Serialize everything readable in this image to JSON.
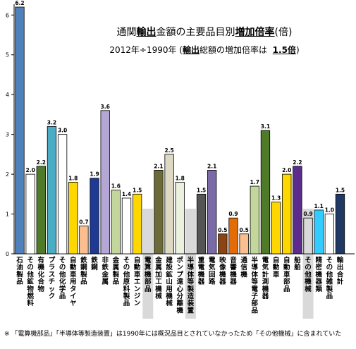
{
  "titles": {
    "line1_pre": "通関",
    "line1_em1": "輸出",
    "line1_mid": "金額の主要品目別",
    "line1_em2": "増加倍率",
    "line1_post": "(倍)",
    "line2_pre": "2012年÷1990年 (",
    "line2_em1": "輸出",
    "line2_mid": "総額の増加倍率は",
    "line2_em2": "1.5倍",
    "line2_post": ")"
  },
  "footnote": "※ 「電算機部品」「半導体等製造装置」は1990年には概況品目とされていなかったため「その他機械」に含まれていた",
  "chart_data": {
    "type": "bar",
    "title": "通関輸出金額の主要品目別増加倍率(倍)",
    "subtitle": "2012年÷1990年 (輸出総額の増加倍率は 1.5倍)",
    "ylim": [
      0,
      6.2
    ],
    "yticks": [
      0,
      1,
      2,
      3,
      4,
      5,
      6
    ],
    "grid": false,
    "categories": [
      "石油製品",
      "その他鉱物燃料",
      "有機化合物",
      "プラスチック",
      "その他化学品",
      "自動車用タイヤ",
      "鉄鋼製品",
      "鉄鋼",
      "非鉄金属",
      "金属製品",
      "その他原料製品",
      "自動車エンジン",
      "電算機部品",
      "金属加工機械",
      "建設鉱山用機械",
      "ポンプ遠心分離機",
      "半導体等製造装置",
      "重電機器",
      "電気回路",
      "映像機器",
      "音響機器",
      "通信機",
      "半導体等電子部品",
      "電気計測機器",
      "自動車",
      "自動車部品",
      "船舶",
      "その他機械",
      "精密機器類",
      "その他雑製品",
      "輸出合計"
    ],
    "values": [
      6.2,
      2.0,
      2.2,
      3.2,
      3.0,
      1.8,
      0.7,
      1.9,
      3.6,
      1.6,
      1.4,
      1.5,
      null,
      2.1,
      2.5,
      1.8,
      null,
      1.5,
      2.1,
      0.5,
      0.9,
      0.5,
      1.7,
      3.1,
      1.3,
      2.0,
      2.2,
      0.9,
      1.1,
      1.0,
      1.5
    ],
    "value_labels": [
      "6.2",
      "2.0",
      "2.2",
      "3.2",
      "3.0",
      "1.8",
      "0.7",
      "1.9",
      "3.6",
      "1.6",
      "1.4",
      "1.5",
      "",
      "2.1",
      "2.5",
      "1.8",
      "",
      "1.5",
      "2.1",
      "0.5",
      "0.9",
      "0.5",
      "1.7",
      "3.1",
      "1.3",
      "2.0",
      "2.2",
      "0.9",
      "1.1",
      "1.0",
      "1.5"
    ],
    "colors": [
      "#4f81bd",
      "#ffffff",
      "#4f7a28",
      "#4bacc6",
      "#ffffff",
      "#ffd700",
      "#fbbf8f",
      "#1f3a93",
      "#b4a7d6",
      "#c3d69b",
      "#ffffff",
      "#ffd700",
      "#bfbfbf",
      "#6b6b3a",
      "#ddd9c3",
      "#ebf1de",
      "#bfbfbf",
      "#555555",
      "#7a6aa8",
      "#8b4513",
      "#e36c09",
      "#fabf8f",
      "#c3d69b",
      "#4f7a28",
      "#ffd700",
      "#ffd700",
      "#5b2c8c",
      "#d9d9d9",
      "#33ccff",
      "#ffffff",
      "#1f3864"
    ],
    "highlighted_categories": [
      "電算機部品",
      "半導体等製造装置",
      "その他機械"
    ],
    "highlight_color": "#d9d9d9",
    "average_line": 1.5
  }
}
